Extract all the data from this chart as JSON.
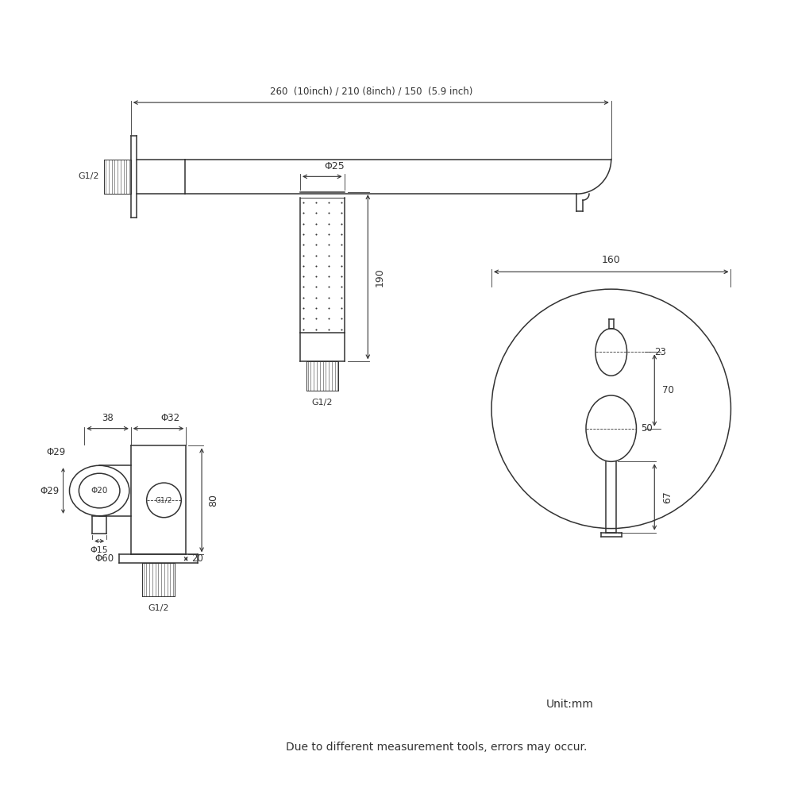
{
  "bg_color": "#ffffff",
  "line_color": "#333333",
  "fig_width": 10,
  "fig_height": 10,
  "footnote1": "Unit:mm",
  "footnote2": "Due to different measurement tools, errors may occur.",
  "dim_label_top": "260  (10inch) / 210 (8inch) / 150  (5.9 inch)",
  "label_phi25": "Φ25",
  "label_phi32": "Φ32",
  "label_phi29": "Φ29",
  "label_phi20": "Φ20",
  "label_phi15": "Φ15",
  "label_phi60": "Φ60",
  "label_190": "190",
  "label_160": "160",
  "label_38": "38",
  "label_80": "80",
  "label_20": "20",
  "label_23": "23",
  "label_50": "50",
  "label_70": "70",
  "label_67": "67",
  "label_g12": "G1/2"
}
